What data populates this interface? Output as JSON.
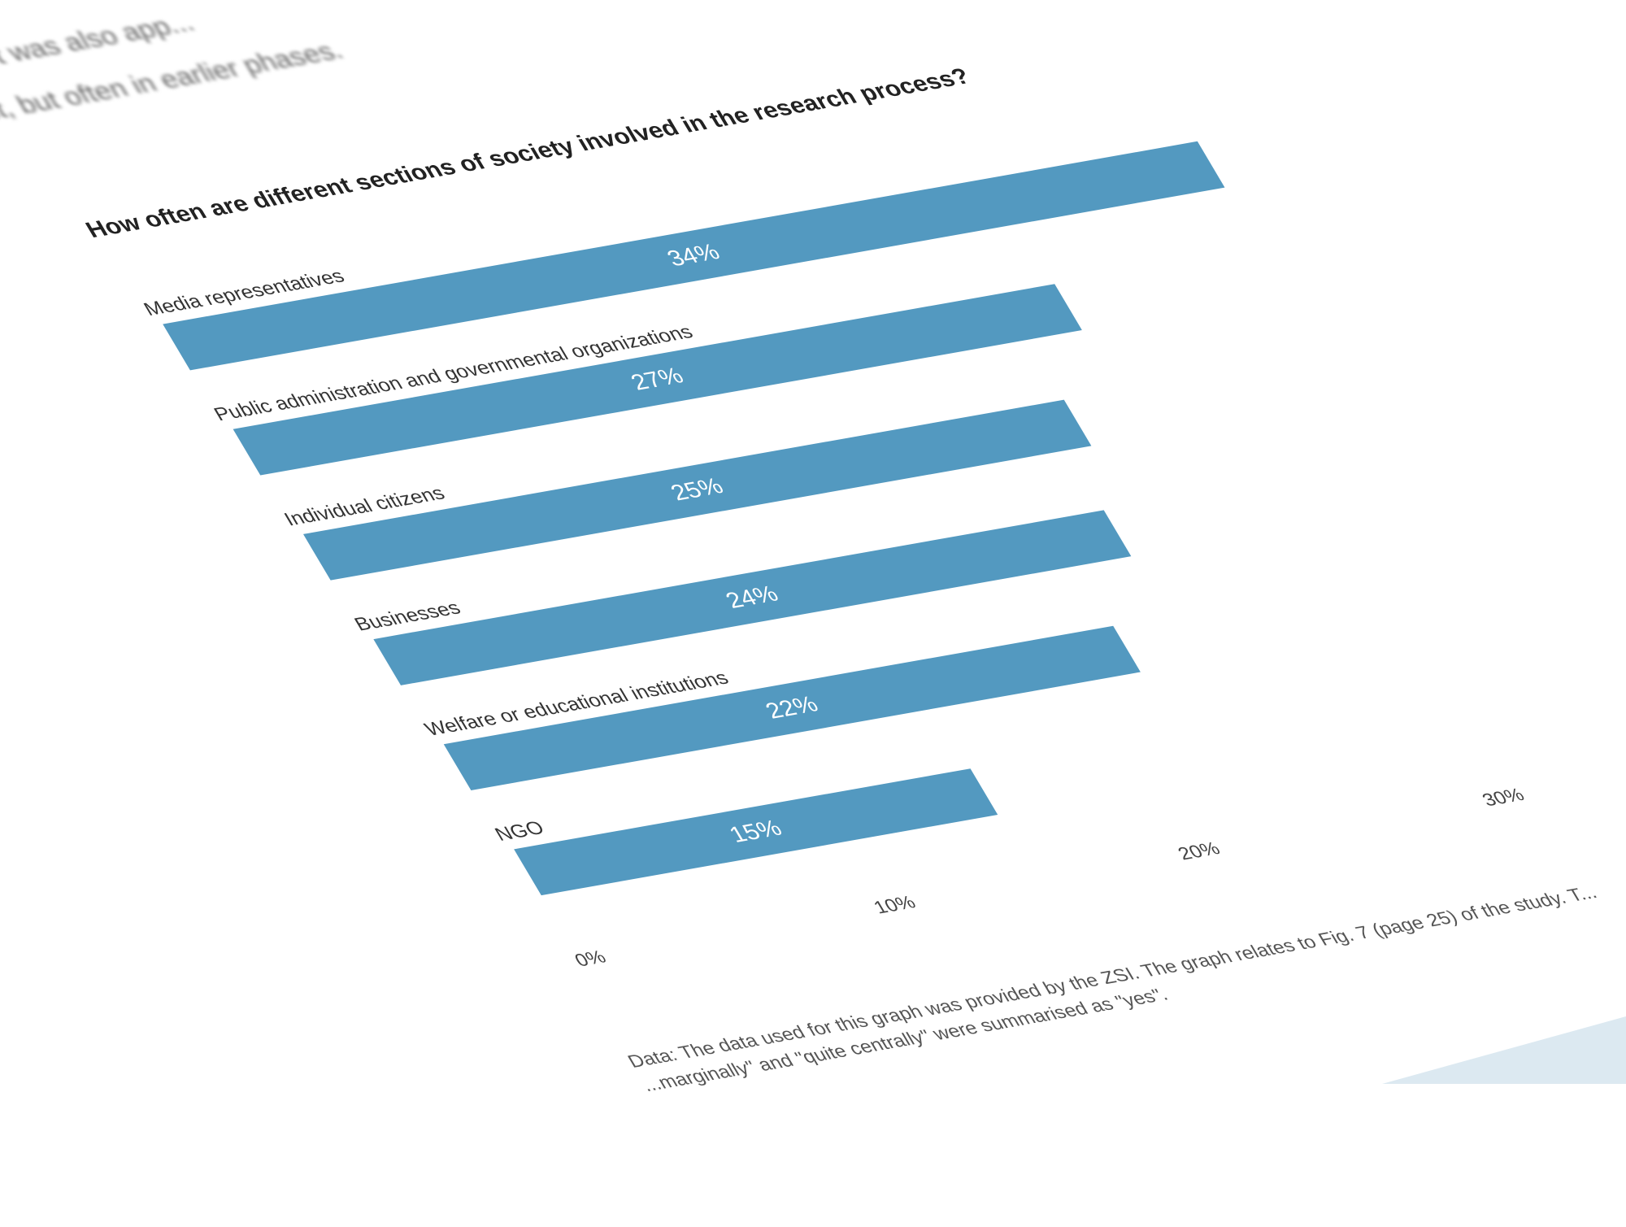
{
  "intro_text": [
    "...",
    "...visory role. It was also app...",
    "...the project, but often in earlier phases."
  ],
  "chart_data": {
    "type": "bar",
    "orientation": "horizontal",
    "title": "How often are different sections of society involved in the research process?",
    "categories": [
      "Media representatives",
      "Public administration and governmental organizations",
      "Individual citizens",
      "Businesses",
      "Welfare or educational institutions",
      "NGO"
    ],
    "values": [
      34,
      27,
      25,
      24,
      22,
      15
    ],
    "data_labels": [
      "34%",
      "27%",
      "25%",
      "24%",
      "22%",
      "15%"
    ],
    "x_ticks": [
      0,
      10,
      20,
      30
    ],
    "x_tick_labels": [
      "0%",
      "10%",
      "20%",
      "30%"
    ],
    "xlim": [
      0,
      34
    ],
    "bar_color": "#5399c0",
    "grid": false,
    "note": [
      "Data: The data used for this graph was provided by the ZSI. The graph relates to Fig. 7 (page 25) of the study. T...",
      "...marginally\" and \"quite centrally\" were summarised as \"yes\"."
    ]
  }
}
